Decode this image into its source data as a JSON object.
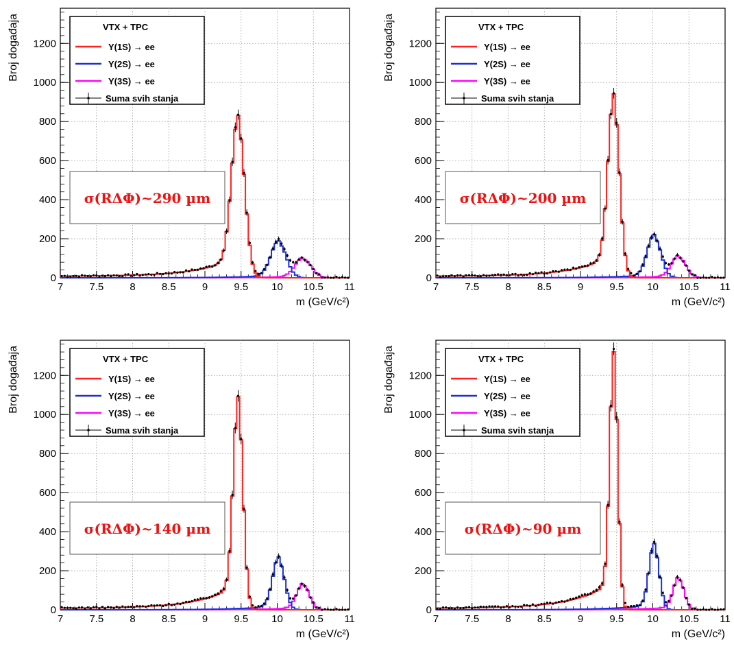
{
  "colors": {
    "s1": "#ff2020",
    "s2": "#1a2fd8",
    "s3": "#ff00ff",
    "sum": "#000000",
    "grid": "#999999",
    "res": "#ee1111"
  },
  "chart_data": [
    {
      "type": "line",
      "legend_title": "VTX + TPC",
      "resolution_label": "σ(RΔΦ)~290 µm",
      "xlabel": "m (GeV/c²)",
      "ylabel": "Broj događaja",
      "xlim": [
        7,
        11
      ],
      "ylim": [
        0,
        1380
      ],
      "xticks": [
        "7",
        "7.5",
        "8",
        "8.5",
        "9",
        "9.5",
        "10",
        "10.5",
        "11"
      ],
      "yticks": [
        "0",
        "200",
        "400",
        "600",
        "800",
        "1000",
        "1200"
      ],
      "grid": true,
      "legend_placement": "top-left",
      "series": [
        {
          "name": "Υ(1S) → ee",
          "peak_x": 9.46,
          "peak_y": 780
        },
        {
          "name": "Υ(2S) → ee",
          "peak_x": 10.02,
          "peak_y": 175
        },
        {
          "name": "Υ(3S) → ee",
          "peak_x": 10.36,
          "peak_y": 95
        },
        {
          "name": "Suma svih stanja"
        }
      ]
    },
    {
      "type": "line",
      "legend_title": "VTX + TPC",
      "resolution_label": "σ(RΔΦ)~200 µm",
      "xlabel": "m (GeV/c²)",
      "ylabel": "Broj događaja",
      "xlim": [
        7,
        11
      ],
      "ylim": [
        0,
        1380
      ],
      "xticks": [
        "7",
        "7.5",
        "8",
        "8.5",
        "9",
        "9.5",
        "10",
        "10.5",
        "11"
      ],
      "yticks": [
        "0",
        "200",
        "400",
        "600",
        "800",
        "1000",
        "1200"
      ],
      "grid": true,
      "legend_placement": "top-left",
      "series": [
        {
          "name": "Υ(1S) → ee",
          "peak_x": 9.46,
          "peak_y": 890
        },
        {
          "name": "Υ(2S) → ee",
          "peak_x": 10.02,
          "peak_y": 205
        },
        {
          "name": "Υ(3S) → ee",
          "peak_x": 10.36,
          "peak_y": 105
        },
        {
          "name": "Suma svih stanja"
        }
      ]
    },
    {
      "type": "line",
      "legend_title": "VTX + TPC",
      "resolution_label": "σ(RΔΦ)~140 µm",
      "xlabel": "m (GeV/c²)",
      "ylabel": "Broj događaja",
      "xlim": [
        7,
        11
      ],
      "ylim": [
        0,
        1380
      ],
      "xticks": [
        "7",
        "7.5",
        "8",
        "8.5",
        "9",
        "9.5",
        "10",
        "10.5",
        "11"
      ],
      "yticks": [
        "0",
        "200",
        "400",
        "600",
        "800",
        "1000",
        "1200"
      ],
      "grid": true,
      "legend_placement": "top-left",
      "series": [
        {
          "name": "Υ(1S) → ee",
          "peak_x": 9.46,
          "peak_y": 1040
        },
        {
          "name": "Υ(2S) → ee",
          "peak_x": 10.02,
          "peak_y": 250
        },
        {
          "name": "Υ(3S) → ee",
          "peak_x": 10.36,
          "peak_y": 125
        },
        {
          "name": "Suma svih stanja"
        }
      ]
    },
    {
      "type": "line",
      "legend_title": "VTX + TPC",
      "resolution_label": "σ(RΔΦ)~90 µm",
      "xlabel": "m (GeV/c²)",
      "ylabel": "Broj događaja",
      "xlim": [
        7,
        11
      ],
      "ylim": [
        0,
        1380
      ],
      "xticks": [
        "7",
        "7.5",
        "8",
        "8.5",
        "9",
        "9.5",
        "10",
        "10.5",
        "11"
      ],
      "yticks": [
        "0",
        "200",
        "400",
        "600",
        "800",
        "1000",
        "1200"
      ],
      "grid": true,
      "legend_placement": "top-left",
      "series": [
        {
          "name": "Υ(1S) → ee",
          "peak_x": 9.46,
          "peak_y": 1270
        },
        {
          "name": "Υ(2S) → ee",
          "peak_x": 10.02,
          "peak_y": 315
        },
        {
          "name": "Υ(3S) → ee",
          "peak_x": 10.36,
          "peak_y": 155
        },
        {
          "name": "Suma svih stanja"
        }
      ]
    }
  ]
}
